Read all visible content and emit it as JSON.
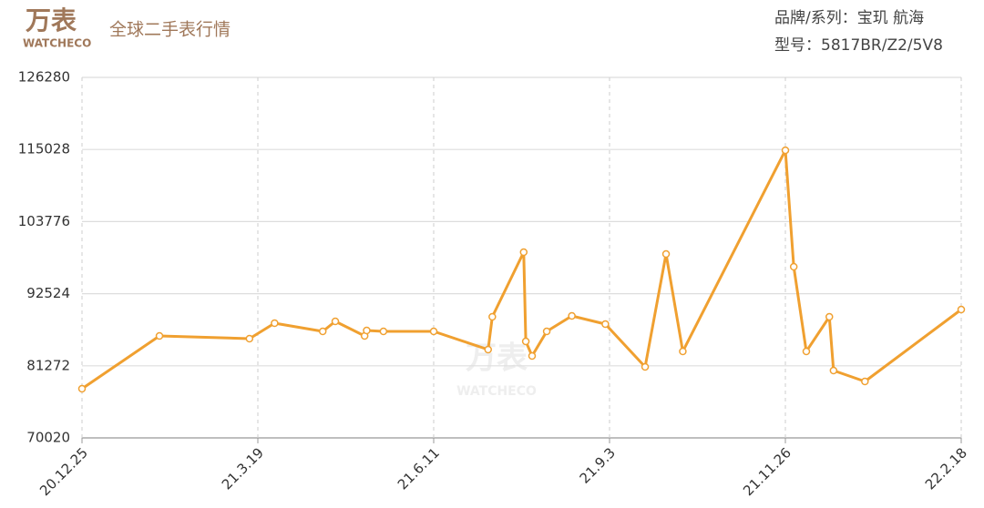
{
  "chart_data": {
    "type": "line",
    "logo": "万表",
    "logo_sub": "WATCHECO",
    "title": "全球二手表行情",
    "brand": "品牌/系列：宝玑 航海",
    "model": "型号：5817BR/Z2/5V8",
    "x": [
      "20.12.25",
      "21.1.31",
      "21.3.15",
      "21.3.27",
      "21.4.19",
      "21.4.25",
      "21.5.9",
      "21.5.10",
      "21.5.18",
      "21.6.11",
      "21.7.7",
      "21.7.9",
      "21.7.24",
      "21.7.25",
      "21.7.28",
      "21.8.4",
      "21.8.16",
      "21.9.1",
      "21.9.20",
      "21.9.30",
      "21.10.8",
      "21.11.26",
      "21.11.30",
      "21.12.6",
      "21.12.17",
      "21.12.19",
      "22.1.3",
      "22.2.18"
    ],
    "series": [
      {
        "color": "#f0a030",
        "values": [
          77692,
          85932,
          85506,
          87920,
          86642,
          88205,
          85932,
          86784,
          86642,
          86642,
          83801,
          88915,
          99002,
          85080,
          82806,
          86642,
          89058,
          87779,
          81101,
          98718,
          83517,
          114900,
          96729,
          83517,
          88915,
          80533,
          78828,
          90052
        ]
      }
    ],
    "xlim": [
      "20.12.25",
      "22.2.18"
    ],
    "xticks": [
      "20.12.25",
      "21.3.19",
      "21.6.11",
      "21.9.3",
      "21.11.26",
      "22.2.18"
    ],
    "ylim": [
      70020,
      126280
    ],
    "yticks": [
      70020,
      81272,
      92524,
      103776,
      115028,
      126280
    ],
    "grid": true
  }
}
